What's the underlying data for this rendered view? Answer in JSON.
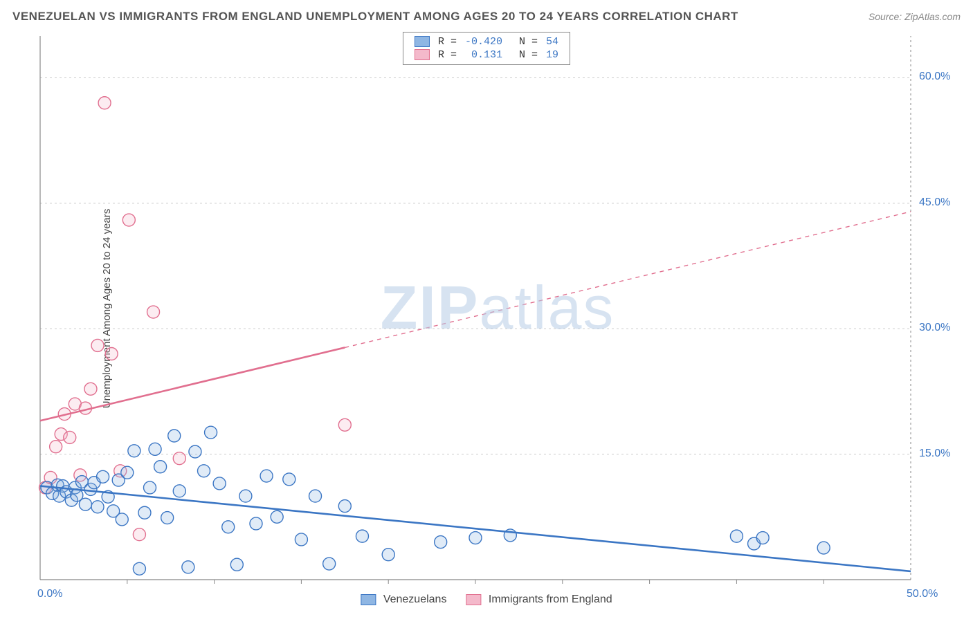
{
  "title": "VENEZUELAN VS IMMIGRANTS FROM ENGLAND UNEMPLOYMENT AMONG AGES 20 TO 24 YEARS CORRELATION CHART",
  "source": "Source: ZipAtlas.com",
  "ylabel": "Unemployment Among Ages 20 to 24 years",
  "watermark": "ZIPatlas",
  "chart": {
    "type": "scatter",
    "background_color": "#ffffff",
    "grid_color": "#cccccc",
    "grid_dash": "3,4",
    "axis_color": "#888888",
    "xlim": [
      0,
      50
    ],
    "ylim": [
      0,
      65
    ],
    "xtick_labels": [
      {
        "v": 0,
        "label": "0.0%"
      },
      {
        "v": 50,
        "label": "50.0%"
      }
    ],
    "ytick_labels": [
      {
        "v": 15,
        "label": "15.0%"
      },
      {
        "v": 30,
        "label": "30.0%"
      },
      {
        "v": 45,
        "label": "45.0%"
      },
      {
        "v": 60,
        "label": "60.0%"
      }
    ],
    "x_minor_ticks": [
      5,
      10,
      15,
      20,
      25,
      30,
      35,
      40,
      45
    ],
    "y_gridlines": [
      15,
      30,
      45,
      60
    ],
    "marker_radius": 9,
    "marker_stroke_width": 1.4,
    "marker_fill_opacity": 0.28,
    "trend_line_width": 2.6,
    "label_fontsize": 16,
    "label_color": "#3b76c4"
  },
  "series": {
    "blue": {
      "name": "Venezuelans",
      "color_stroke": "#3b76c4",
      "color_fill": "#8fb6e3",
      "R": "-0.420",
      "N": "54",
      "trend": {
        "x1": 0,
        "y1": 11.2,
        "x2": 50,
        "y2": 1.0,
        "solid_until_x": 50
      },
      "points": [
        [
          0.4,
          11.0
        ],
        [
          0.7,
          10.3
        ],
        [
          1.0,
          11.3
        ],
        [
          1.1,
          10.0
        ],
        [
          1.3,
          11.2
        ],
        [
          1.5,
          10.5
        ],
        [
          1.8,
          9.5
        ],
        [
          2.0,
          11.0
        ],
        [
          2.1,
          10.1
        ],
        [
          2.4,
          11.7
        ],
        [
          2.6,
          9.0
        ],
        [
          2.9,
          10.8
        ],
        [
          3.1,
          11.6
        ],
        [
          3.3,
          8.7
        ],
        [
          3.6,
          12.3
        ],
        [
          3.9,
          9.9
        ],
        [
          4.2,
          8.2
        ],
        [
          4.5,
          11.9
        ],
        [
          4.7,
          7.2
        ],
        [
          5.0,
          12.8
        ],
        [
          5.4,
          15.4
        ],
        [
          5.7,
          1.3
        ],
        [
          6.0,
          8.0
        ],
        [
          6.3,
          11.0
        ],
        [
          6.6,
          15.6
        ],
        [
          6.9,
          13.5
        ],
        [
          7.3,
          7.4
        ],
        [
          7.7,
          17.2
        ],
        [
          8.0,
          10.6
        ],
        [
          8.5,
          1.5
        ],
        [
          8.9,
          15.3
        ],
        [
          9.4,
          13.0
        ],
        [
          9.8,
          17.6
        ],
        [
          10.3,
          11.5
        ],
        [
          10.8,
          6.3
        ],
        [
          11.3,
          1.8
        ],
        [
          11.8,
          10.0
        ],
        [
          12.4,
          6.7
        ],
        [
          13.0,
          12.4
        ],
        [
          13.6,
          7.5
        ],
        [
          14.3,
          12.0
        ],
        [
          15.0,
          4.8
        ],
        [
          15.8,
          10.0
        ],
        [
          16.6,
          1.9
        ],
        [
          17.5,
          8.8
        ],
        [
          18.5,
          5.2
        ],
        [
          20.0,
          3.0
        ],
        [
          23.0,
          4.5
        ],
        [
          25.0,
          5.0
        ],
        [
          27.0,
          5.3
        ],
        [
          40.0,
          5.2
        ],
        [
          41.0,
          4.3
        ],
        [
          41.5,
          5.0
        ],
        [
          45.0,
          3.8
        ]
      ]
    },
    "pink": {
      "name": "Immigrants from England",
      "color_stroke": "#e16f8f",
      "color_fill": "#f4b9cb",
      "R": "0.131",
      "N": "19",
      "trend": {
        "x1": 0,
        "y1": 19.0,
        "x2": 50,
        "y2": 44.0,
        "solid_until_x": 17.5
      },
      "points": [
        [
          0.3,
          11.0
        ],
        [
          0.6,
          12.2
        ],
        [
          0.9,
          15.9
        ],
        [
          1.2,
          17.4
        ],
        [
          1.4,
          19.8
        ],
        [
          1.7,
          17.0
        ],
        [
          2.0,
          21.0
        ],
        [
          2.3,
          12.5
        ],
        [
          2.6,
          20.5
        ],
        [
          2.9,
          22.8
        ],
        [
          3.3,
          28.0
        ],
        [
          3.7,
          57.0
        ],
        [
          4.1,
          27.0
        ],
        [
          4.6,
          13.0
        ],
        [
          5.1,
          43.0
        ],
        [
          5.7,
          5.4
        ],
        [
          6.5,
          32.0
        ],
        [
          8.0,
          14.5
        ],
        [
          17.5,
          18.5
        ]
      ]
    }
  },
  "legend_top": {
    "col_R": "R =",
    "col_N": "N ="
  },
  "legend_bottom": {
    "items": [
      "blue",
      "pink"
    ]
  }
}
